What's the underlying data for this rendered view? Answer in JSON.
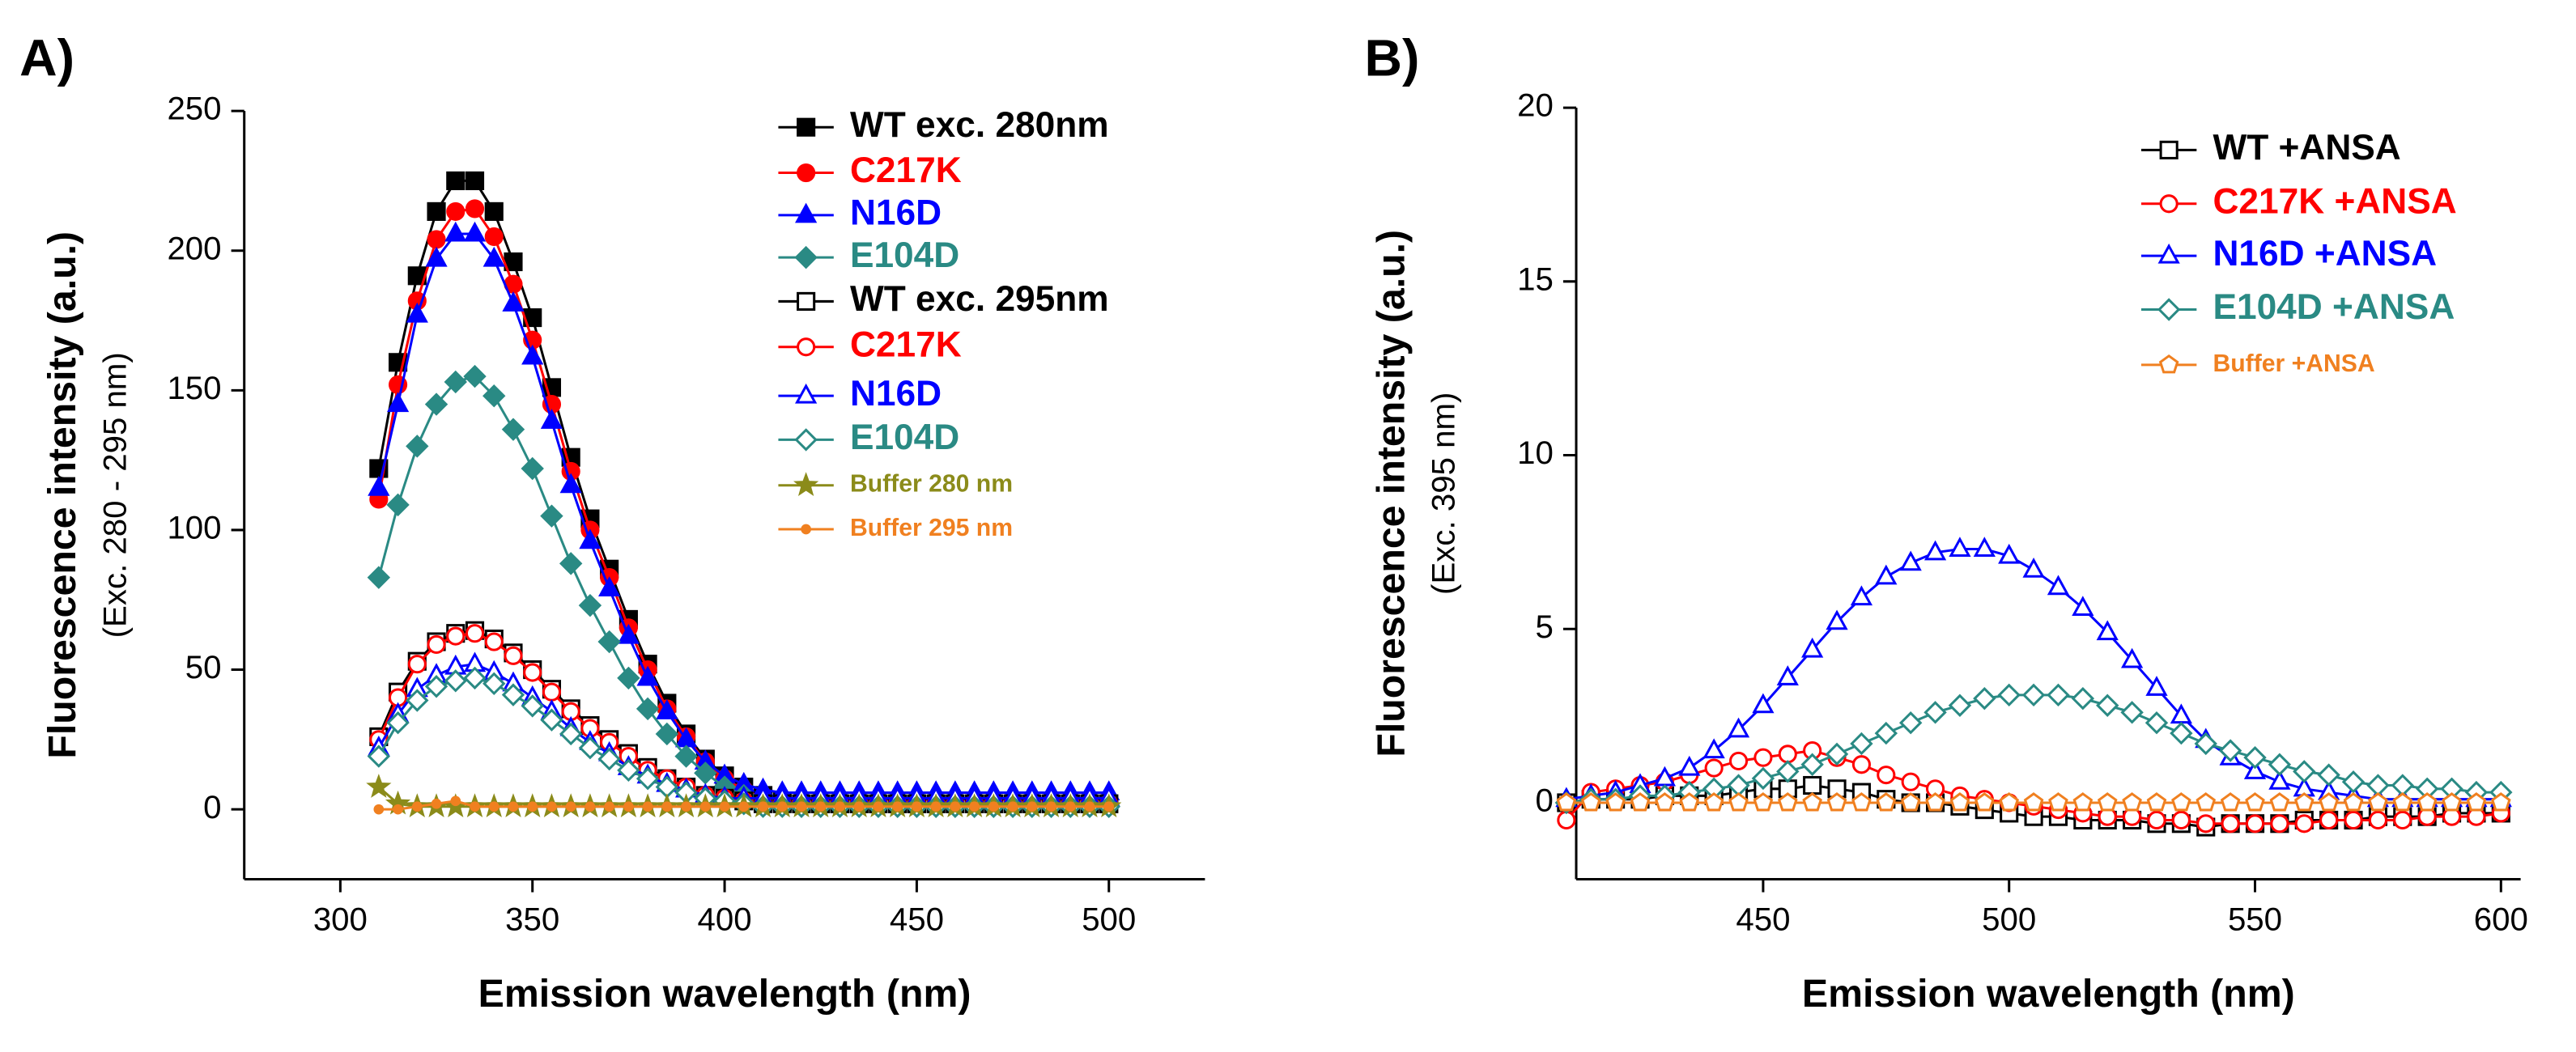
{
  "chart_data": [
    {
      "type": "line",
      "panel_label": "A)",
      "xlabel": "Emission wavelength (nm)",
      "ylabel": "Fluorescence intensity (a.u.)",
      "ylabel_sub": "(Exc. 280 - 295 nm)",
      "xlim": [
        275,
        525
      ],
      "xticks": [
        300,
        350,
        400,
        450,
        500
      ],
      "ylim": [
        -25,
        250
      ],
      "yticks": [
        0,
        50,
        100,
        150,
        200,
        250
      ],
      "x": [
        310,
        315,
        320,
        325,
        330,
        335,
        340,
        345,
        350,
        355,
        360,
        365,
        370,
        375,
        380,
        385,
        390,
        395,
        400,
        405,
        410,
        415,
        420,
        425,
        430,
        435,
        440,
        445,
        450,
        455,
        460,
        465,
        470,
        475,
        480,
        485,
        490,
        495,
        500
      ],
      "series": [
        {
          "name": "WT exc. 280nm",
          "color": "#000000",
          "marker": "square",
          "filled": true,
          "values": [
            122,
            160,
            191,
            214,
            225,
            225,
            214,
            196,
            176,
            151,
            126,
            104,
            86,
            68,
            52,
            38,
            27,
            18,
            12,
            8,
            5,
            3,
            2,
            2,
            2,
            2,
            2,
            2,
            2,
            2,
            2,
            2,
            2,
            2,
            2,
            2,
            2,
            2,
            2
          ]
        },
        {
          "name": "C217K",
          "color": "#ff0000",
          "marker": "circle",
          "filled": true,
          "values": [
            111,
            152,
            182,
            204,
            214,
            215,
            205,
            188,
            168,
            145,
            121,
            100,
            83,
            65,
            50,
            36,
            26,
            17,
            11,
            7,
            4,
            3,
            2,
            2,
            2,
            2,
            2,
            2,
            2,
            2,
            2,
            2,
            2,
            2,
            2,
            2,
            2,
            2,
            2
          ]
        },
        {
          "name": "N16D",
          "color": "#0000ff",
          "marker": "triangle",
          "filled": true,
          "values": [
            115,
            145,
            177,
            197,
            206,
            206,
            197,
            181,
            162,
            139,
            116,
            96,
            79,
            62,
            47,
            35,
            25,
            17,
            12,
            9,
            7,
            6,
            6,
            6,
            6,
            6,
            6,
            6,
            6,
            6,
            6,
            6,
            6,
            6,
            6,
            6,
            6,
            6,
            6
          ]
        },
        {
          "name": "E104D",
          "color": "#2a8a84",
          "marker": "diamond",
          "filled": true,
          "values": [
            83,
            109,
            130,
            145,
            153,
            155,
            148,
            136,
            122,
            105,
            88,
            73,
            60,
            47,
            36,
            27,
            19,
            13,
            8,
            5,
            3,
            2,
            1,
            1,
            1,
            1,
            1,
            1,
            1,
            1,
            1,
            1,
            1,
            1,
            1,
            1,
            1,
            1,
            1
          ]
        },
        {
          "name": "WT exc. 295nm",
          "color": "#000000",
          "marker": "square",
          "filled": false,
          "values": [
            26,
            42,
            53,
            60,
            63,
            64,
            61,
            56,
            50,
            43,
            36,
            30,
            25,
            20,
            15,
            11,
            8,
            5,
            4,
            3,
            2,
            2,
            2,
            2,
            2,
            2,
            2,
            2,
            2,
            2,
            2,
            2,
            2,
            2,
            2,
            2,
            2,
            2,
            2
          ]
        },
        {
          "name": "C217K",
          "color": "#ff0000",
          "marker": "circle",
          "filled": false,
          "values": [
            25,
            40,
            52,
            59,
            62,
            63,
            60,
            55,
            49,
            42,
            35,
            29,
            24,
            19,
            14,
            11,
            8,
            5,
            4,
            3,
            2,
            2,
            2,
            2,
            2,
            2,
            2,
            2,
            2,
            2,
            2,
            2,
            2,
            2,
            2,
            2,
            2,
            2,
            2
          ]
        },
        {
          "name": "N16D",
          "color": "#0000ff",
          "marker": "triangle",
          "filled": false,
          "values": [
            22,
            34,
            43,
            48,
            51,
            52,
            49,
            45,
            40,
            35,
            29,
            24,
            20,
            15,
            12,
            9,
            7,
            5,
            4,
            4,
            4,
            4,
            4,
            4,
            4,
            4,
            4,
            4,
            4,
            4,
            4,
            4,
            4,
            4,
            4,
            4,
            4,
            4,
            4
          ]
        },
        {
          "name": "E104D",
          "color": "#2a8a84",
          "marker": "diamond",
          "filled": false,
          "values": [
            19,
            31,
            39,
            44,
            46,
            47,
            45,
            41,
            37,
            32,
            27,
            22,
            18,
            14,
            11,
            8,
            6,
            4,
            3,
            2,
            1,
            1,
            1,
            1,
            1,
            1,
            1,
            1,
            1,
            1,
            1,
            1,
            1,
            1,
            1,
            1,
            1,
            1,
            1
          ]
        },
        {
          "name": "Buffer 280 nm",
          "color": "#8b8b1a",
          "marker": "star",
          "filled": true,
          "values": [
            8,
            2,
            1,
            1,
            1,
            1,
            1,
            1,
            1,
            1,
            1,
            1,
            1,
            1,
            1,
            1,
            1,
            1,
            1,
            1,
            1,
            1,
            1,
            1,
            1,
            1,
            1,
            1,
            1,
            1,
            1,
            1,
            1,
            1,
            1,
            1,
            1,
            1,
            1
          ]
        },
        {
          "name": "Buffer 295 nm",
          "color": "#f08020",
          "marker": "dot",
          "filled": true,
          "values": [
            0,
            0,
            1,
            2,
            3,
            1,
            1,
            1,
            1,
            1,
            1,
            1,
            1,
            1,
            1,
            1,
            1,
            1,
            1,
            1,
            1,
            1,
            1,
            1,
            1,
            1,
            1,
            1,
            1,
            1,
            1,
            1,
            1,
            1,
            1,
            1,
            1,
            1,
            1
          ]
        }
      ]
    },
    {
      "type": "line",
      "panel_label": "B)",
      "xlabel": "Emission wavelength (nm)",
      "ylabel": "Fluorescence intensity (a.u.)",
      "ylabel_sub": "(Exc. 395 nm)",
      "xlim": [
        412,
        604
      ],
      "xticks": [
        450,
        500,
        550,
        600
      ],
      "ylim": [
        -2.2,
        20
      ],
      "yticks": [
        0,
        5,
        10,
        15,
        20
      ],
      "x": [
        410,
        415,
        420,
        425,
        430,
        435,
        440,
        445,
        450,
        455,
        460,
        465,
        470,
        475,
        480,
        485,
        490,
        495,
        500,
        505,
        510,
        515,
        520,
        525,
        530,
        535,
        540,
        545,
        550,
        555,
        560,
        565,
        570,
        575,
        580,
        585,
        590,
        595,
        600
      ],
      "series": [
        {
          "name": "WT +ANSA",
          "color": "#000000",
          "marker": "square",
          "filled": false,
          "values": [
            0.0,
            0.1,
            0.1,
            0.1,
            0.2,
            0.2,
            0.2,
            0.3,
            0.4,
            0.4,
            0.5,
            0.4,
            0.3,
            0.1,
            0.0,
            0.0,
            -0.1,
            -0.2,
            -0.3,
            -0.4,
            -0.4,
            -0.5,
            -0.5,
            -0.5,
            -0.6,
            -0.6,
            -0.7,
            -0.6,
            -0.6,
            -0.6,
            -0.5,
            -0.5,
            -0.5,
            -0.4,
            -0.4,
            -0.4,
            -0.3,
            -0.3,
            -0.3
          ]
        },
        {
          "name": "C217K +ANSA",
          "color": "#ff0000",
          "marker": "circle",
          "filled": false,
          "values": [
            -0.5,
            0.3,
            0.4,
            0.5,
            0.6,
            0.8,
            1.0,
            1.2,
            1.3,
            1.4,
            1.5,
            1.3,
            1.1,
            0.8,
            0.6,
            0.4,
            0.2,
            0.1,
            0.0,
            -0.1,
            -0.2,
            -0.3,
            -0.4,
            -0.4,
            -0.5,
            -0.5,
            -0.6,
            -0.6,
            -0.6,
            -0.6,
            -0.6,
            -0.5,
            -0.5,
            -0.5,
            -0.5,
            -0.4,
            -0.4,
            -0.4,
            -0.3
          ]
        },
        {
          "name": "N16D +ANSA",
          "color": "#0000ff",
          "marker": "triangle",
          "filled": false,
          "values": [
            0.1,
            0.2,
            0.3,
            0.5,
            0.7,
            1.0,
            1.5,
            2.1,
            2.8,
            3.6,
            4.4,
            5.2,
            5.9,
            6.5,
            6.9,
            7.2,
            7.3,
            7.3,
            7.1,
            6.7,
            6.2,
            5.6,
            4.9,
            4.1,
            3.3,
            2.5,
            1.8,
            1.3,
            0.9,
            0.6,
            0.4,
            0.3,
            0.2,
            0.1,
            0.1,
            0.1,
            0.1,
            0.1,
            0.1
          ]
        },
        {
          "name": "E104D +ANSA",
          "color": "#2a8a84",
          "marker": "diamond",
          "filled": false,
          "values": [
            0.0,
            0.1,
            0.1,
            0.2,
            0.2,
            0.3,
            0.4,
            0.5,
            0.7,
            0.9,
            1.1,
            1.4,
            1.7,
            2.0,
            2.3,
            2.6,
            2.8,
            3.0,
            3.1,
            3.1,
            3.1,
            3.0,
            2.8,
            2.6,
            2.3,
            2.0,
            1.7,
            1.5,
            1.3,
            1.1,
            0.9,
            0.8,
            0.6,
            0.5,
            0.5,
            0.4,
            0.4,
            0.3,
            0.3
          ]
        },
        {
          "name": "Buffer +ANSA",
          "color": "#f08020",
          "marker": "pentagon",
          "filled": false,
          "values": [
            0,
            0,
            0,
            0,
            0,
            0,
            0,
            0,
            0,
            0,
            0,
            0,
            0,
            0,
            0,
            0,
            0,
            0,
            0,
            0,
            0,
            0,
            0,
            0,
            0,
            0,
            0,
            0,
            0,
            0,
            0,
            0,
            0,
            0,
            0,
            0,
            0,
            0,
            0
          ]
        }
      ]
    }
  ]
}
